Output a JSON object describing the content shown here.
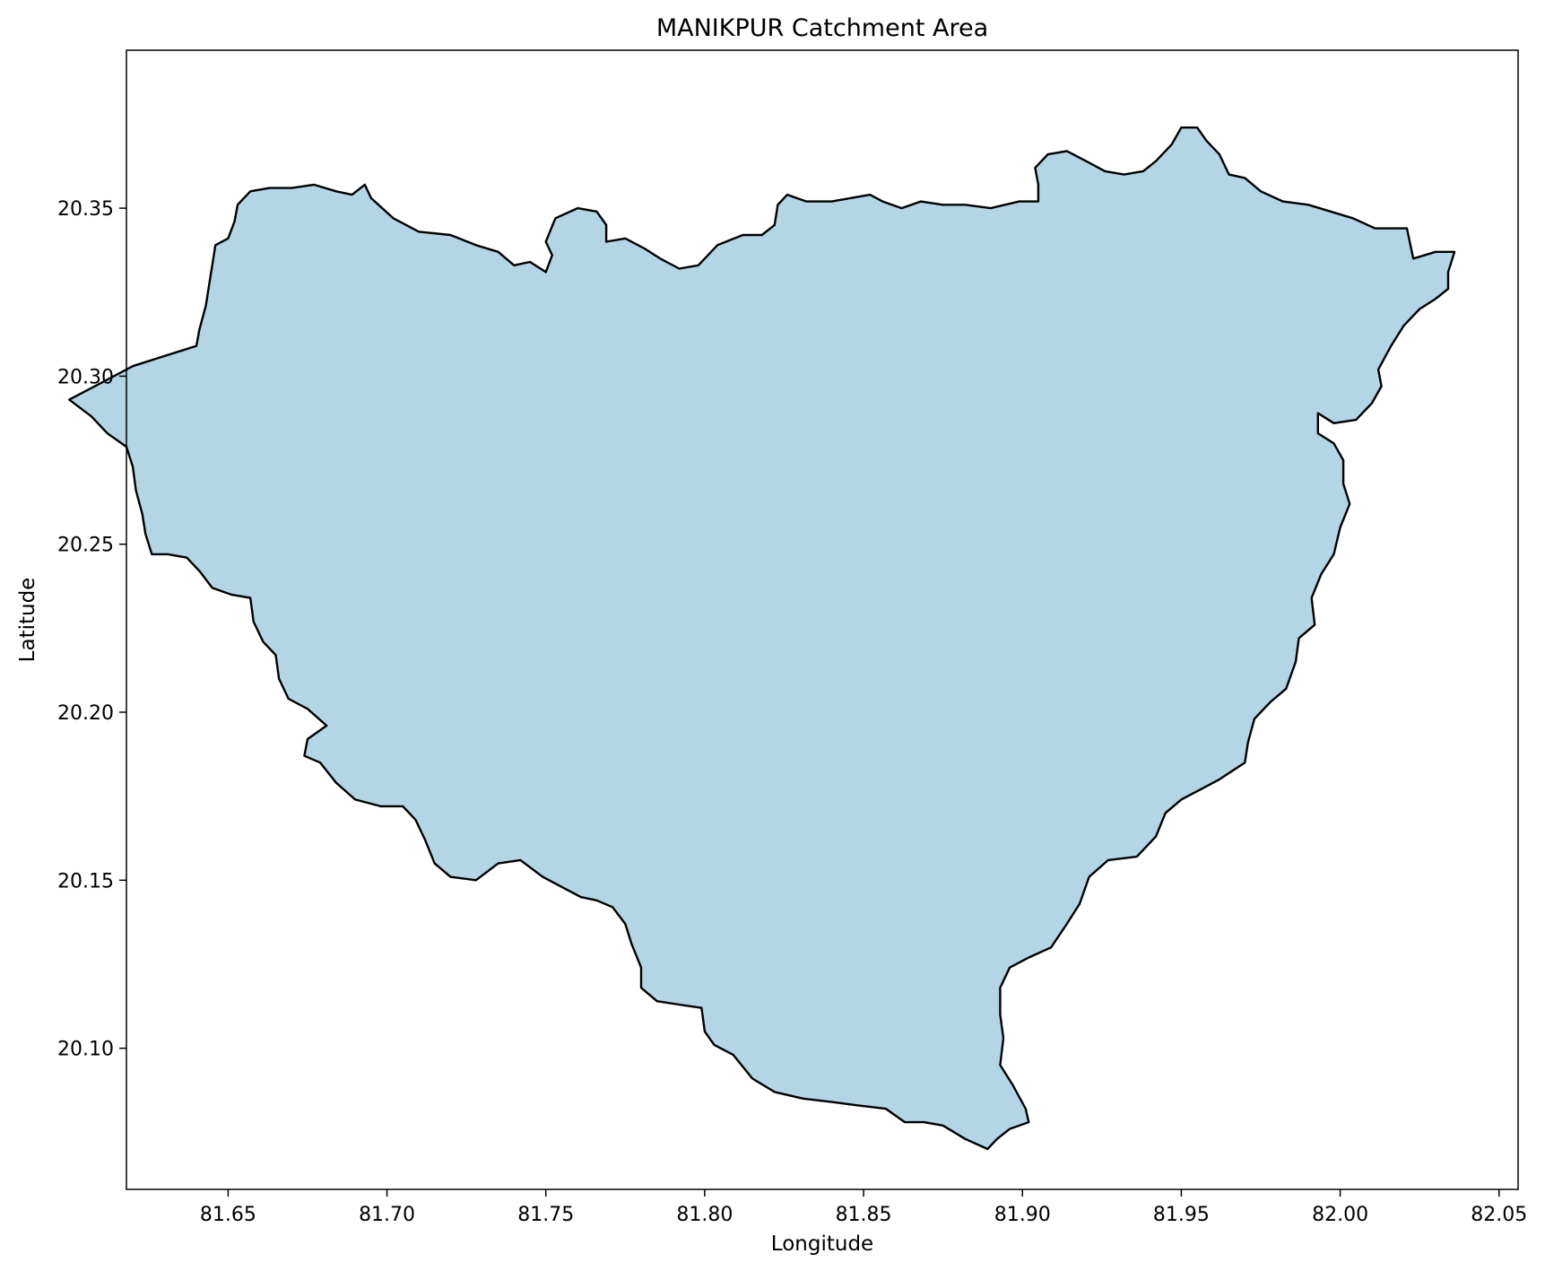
{
  "chart_data": {
    "type": "area",
    "title": "MANIKPUR Catchment Area",
    "xlabel": "Longitude",
    "ylabel": "Latitude",
    "xlim": [
      81.618,
      82.056
    ],
    "ylim": [
      20.058,
      20.397
    ],
    "xticks": [
      "81.65",
      "81.70",
      "81.75",
      "81.80",
      "81.85",
      "81.90",
      "81.95",
      "82.00",
      "82.05"
    ],
    "yticks": [
      "20.10",
      "20.15",
      "20.20",
      "20.25",
      "20.30",
      "20.35"
    ],
    "grid": false,
    "fill_color": "#b3d5e6",
    "edge_color": "#000000",
    "series": [
      {
        "points": [
          [
            81.64,
            20.309
          ],
          [
            81.641,
            20.314
          ],
          [
            81.643,
            20.321
          ],
          [
            81.644,
            20.327
          ],
          [
            81.645,
            20.333
          ],
          [
            81.646,
            20.339
          ],
          [
            81.65,
            20.341
          ],
          [
            81.652,
            20.346
          ],
          [
            81.653,
            20.351
          ],
          [
            81.657,
            20.355
          ],
          [
            81.663,
            20.356
          ],
          [
            81.67,
            20.356
          ],
          [
            81.677,
            20.357
          ],
          [
            81.684,
            20.355
          ],
          [
            81.689,
            20.354
          ],
          [
            81.693,
            20.357
          ],
          [
            81.695,
            20.353
          ],
          [
            81.702,
            20.347
          ],
          [
            81.71,
            20.343
          ],
          [
            81.72,
            20.342
          ],
          [
            81.728,
            20.339
          ],
          [
            81.735,
            20.337
          ],
          [
            81.74,
            20.333
          ],
          [
            81.745,
            20.334
          ],
          [
            81.75,
            20.331
          ],
          [
            81.752,
            20.336
          ],
          [
            81.75,
            20.34
          ],
          [
            81.753,
            20.347
          ],
          [
            81.76,
            20.35
          ],
          [
            81.766,
            20.349
          ],
          [
            81.769,
            20.345
          ],
          [
            81.769,
            20.34
          ],
          [
            81.775,
            20.341
          ],
          [
            81.781,
            20.338
          ],
          [
            81.786,
            20.335
          ],
          [
            81.792,
            20.332
          ],
          [
            81.798,
            20.333
          ],
          [
            81.804,
            20.339
          ],
          [
            81.812,
            20.342
          ],
          [
            81.818,
            20.342
          ],
          [
            81.822,
            20.345
          ],
          [
            81.823,
            20.351
          ],
          [
            81.826,
            20.354
          ],
          [
            81.832,
            20.352
          ],
          [
            81.84,
            20.352
          ],
          [
            81.846,
            20.353
          ],
          [
            81.852,
            20.354
          ],
          [
            81.856,
            20.352
          ],
          [
            81.862,
            20.35
          ],
          [
            81.868,
            20.352
          ],
          [
            81.875,
            20.351
          ],
          [
            81.882,
            20.351
          ],
          [
            81.89,
            20.35
          ],
          [
            81.899,
            20.352
          ],
          [
            81.905,
            20.352
          ],
          [
            81.905,
            20.357
          ],
          [
            81.904,
            20.362
          ],
          [
            81.908,
            20.366
          ],
          [
            81.914,
            20.367
          ],
          [
            81.92,
            20.364
          ],
          [
            81.926,
            20.361
          ],
          [
            81.932,
            20.36
          ],
          [
            81.938,
            20.361
          ],
          [
            81.942,
            20.364
          ],
          [
            81.947,
            20.369
          ],
          [
            81.95,
            20.374
          ],
          [
            81.955,
            20.374
          ],
          [
            81.958,
            20.37
          ],
          [
            81.962,
            20.366
          ],
          [
            81.965,
            20.36
          ],
          [
            81.97,
            20.359
          ],
          [
            81.975,
            20.355
          ],
          [
            81.982,
            20.352
          ],
          [
            81.99,
            20.351
          ],
          [
            81.997,
            20.349
          ],
          [
            82.004,
            20.347
          ],
          [
            82.011,
            20.344
          ],
          [
            82.021,
            20.344
          ],
          [
            82.023,
            20.335
          ],
          [
            82.03,
            20.337
          ],
          [
            82.036,
            20.337
          ],
          [
            82.034,
            20.331
          ],
          [
            82.034,
            20.326
          ],
          [
            82.03,
            20.323
          ],
          [
            82.025,
            20.32
          ],
          [
            82.02,
            20.315
          ],
          [
            82.016,
            20.309
          ],
          [
            82.012,
            20.302
          ],
          [
            82.013,
            20.297
          ],
          [
            82.01,
            20.292
          ],
          [
            82.005,
            20.287
          ],
          [
            81.998,
            20.286
          ],
          [
            81.993,
            20.289
          ],
          [
            81.993,
            20.283
          ],
          [
            81.998,
            20.28
          ],
          [
            82.001,
            20.275
          ],
          [
            82.001,
            20.268
          ],
          [
            82.003,
            20.262
          ],
          [
            82.0,
            20.255
          ],
          [
            81.998,
            20.247
          ],
          [
            81.994,
            20.241
          ],
          [
            81.991,
            20.234
          ],
          [
            81.992,
            20.226
          ],
          [
            81.987,
            20.222
          ],
          [
            81.986,
            20.215
          ],
          [
            81.983,
            20.207
          ],
          [
            81.978,
            20.203
          ],
          [
            81.973,
            20.198
          ],
          [
            81.971,
            20.191
          ],
          [
            81.97,
            20.185
          ],
          [
            81.962,
            20.18
          ],
          [
            81.956,
            20.177
          ],
          [
            81.95,
            20.174
          ],
          [
            81.945,
            20.17
          ],
          [
            81.942,
            20.163
          ],
          [
            81.936,
            20.157
          ],
          [
            81.927,
            20.156
          ],
          [
            81.921,
            20.151
          ],
          [
            81.918,
            20.143
          ],
          [
            81.914,
            20.137
          ],
          [
            81.909,
            20.13
          ],
          [
            81.902,
            20.127
          ],
          [
            81.896,
            20.124
          ],
          [
            81.893,
            20.118
          ],
          [
            81.893,
            20.11
          ],
          [
            81.894,
            20.103
          ],
          [
            81.893,
            20.095
          ],
          [
            81.897,
            20.089
          ],
          [
            81.901,
            20.082
          ],
          [
            81.902,
            20.078
          ],
          [
            81.896,
            20.076
          ],
          [
            81.892,
            20.073
          ],
          [
            81.889,
            20.07
          ],
          [
            81.882,
            20.073
          ],
          [
            81.875,
            20.077
          ],
          [
            81.869,
            20.078
          ],
          [
            81.863,
            20.078
          ],
          [
            81.857,
            20.082
          ],
          [
            81.848,
            20.083
          ],
          [
            81.84,
            20.084
          ],
          [
            81.831,
            20.085
          ],
          [
            81.822,
            20.087
          ],
          [
            81.815,
            20.091
          ],
          [
            81.809,
            20.098
          ],
          [
            81.803,
            20.101
          ],
          [
            81.8,
            20.105
          ],
          [
            81.799,
            20.112
          ],
          [
            81.792,
            20.113
          ],
          [
            81.785,
            20.114
          ],
          [
            81.78,
            20.118
          ],
          [
            81.78,
            20.124
          ],
          [
            81.777,
            20.131
          ],
          [
            81.775,
            20.137
          ],
          [
            81.771,
            20.142
          ],
          [
            81.766,
            20.144
          ],
          [
            81.761,
            20.145
          ],
          [
            81.755,
            20.148
          ],
          [
            81.749,
            20.151
          ],
          [
            81.742,
            20.156
          ],
          [
            81.735,
            20.155
          ],
          [
            81.728,
            20.15
          ],
          [
            81.72,
            20.151
          ],
          [
            81.715,
            20.155
          ],
          [
            81.712,
            20.162
          ],
          [
            81.709,
            20.168
          ],
          [
            81.705,
            20.172
          ],
          [
            81.698,
            20.172
          ],
          [
            81.69,
            20.174
          ],
          [
            81.684,
            20.179
          ],
          [
            81.679,
            20.185
          ],
          [
            81.674,
            20.187
          ],
          [
            81.675,
            20.192
          ],
          [
            81.681,
            20.196
          ],
          [
            81.675,
            20.201
          ],
          [
            81.669,
            20.204
          ],
          [
            81.666,
            20.21
          ],
          [
            81.665,
            20.217
          ],
          [
            81.661,
            20.221
          ],
          [
            81.658,
            20.227
          ],
          [
            81.657,
            20.234
          ],
          [
            81.651,
            20.235
          ],
          [
            81.645,
            20.237
          ],
          [
            81.641,
            20.242
          ],
          [
            81.637,
            20.246
          ],
          [
            81.631,
            20.247
          ],
          [
            81.626,
            20.247
          ],
          [
            81.624,
            20.253
          ],
          [
            81.623,
            20.259
          ],
          [
            81.621,
            20.266
          ],
          [
            81.62,
            20.273
          ],
          [
            81.618,
            20.279
          ],
          [
            81.612,
            20.283
          ],
          [
            81.607,
            20.288
          ],
          [
            81.6,
            20.293
          ],
          [
            81.61,
            20.298
          ],
          [
            81.62,
            20.303
          ],
          [
            81.63,
            20.306
          ],
          [
            81.64,
            20.309
          ]
        ]
      }
    ]
  }
}
